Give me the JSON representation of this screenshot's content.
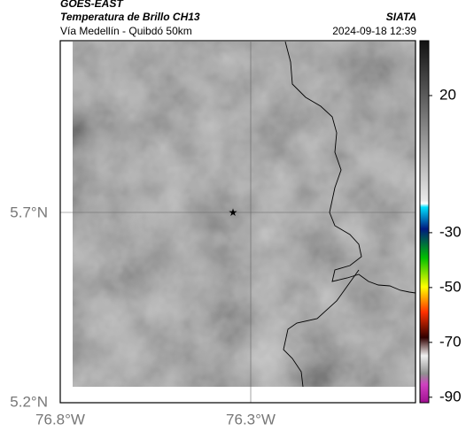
{
  "header": {
    "satellite": "GOES-EAST",
    "product": "Temperatura de Brillo CH13",
    "route": "Vía Medellín - Quibdó 50km",
    "source": "SIATA",
    "timestamp": "2024-09-18 12:39"
  },
  "map": {
    "lat_labels": [
      "5.7°N",
      "5.2°N"
    ],
    "lon_labels": [
      "76.8°W",
      "76.3°W"
    ]
  },
  "colorbar": {
    "range": [
      -92,
      40
    ],
    "ticks": [
      20,
      -30,
      -50,
      -70,
      -90
    ]
  }
}
